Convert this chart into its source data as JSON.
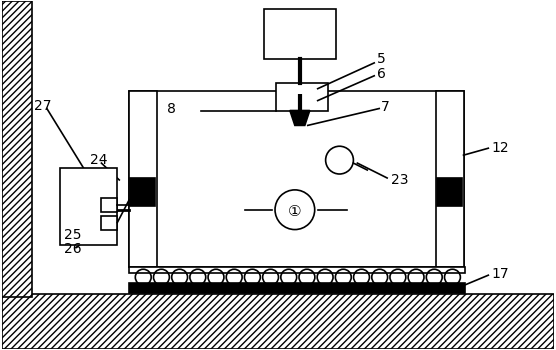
{
  "bg_color": "#ffffff",
  "lc": "#000000",
  "lw": 1.2,
  "fig_width": 5.56,
  "fig_height": 3.5,
  "dpi": 100
}
